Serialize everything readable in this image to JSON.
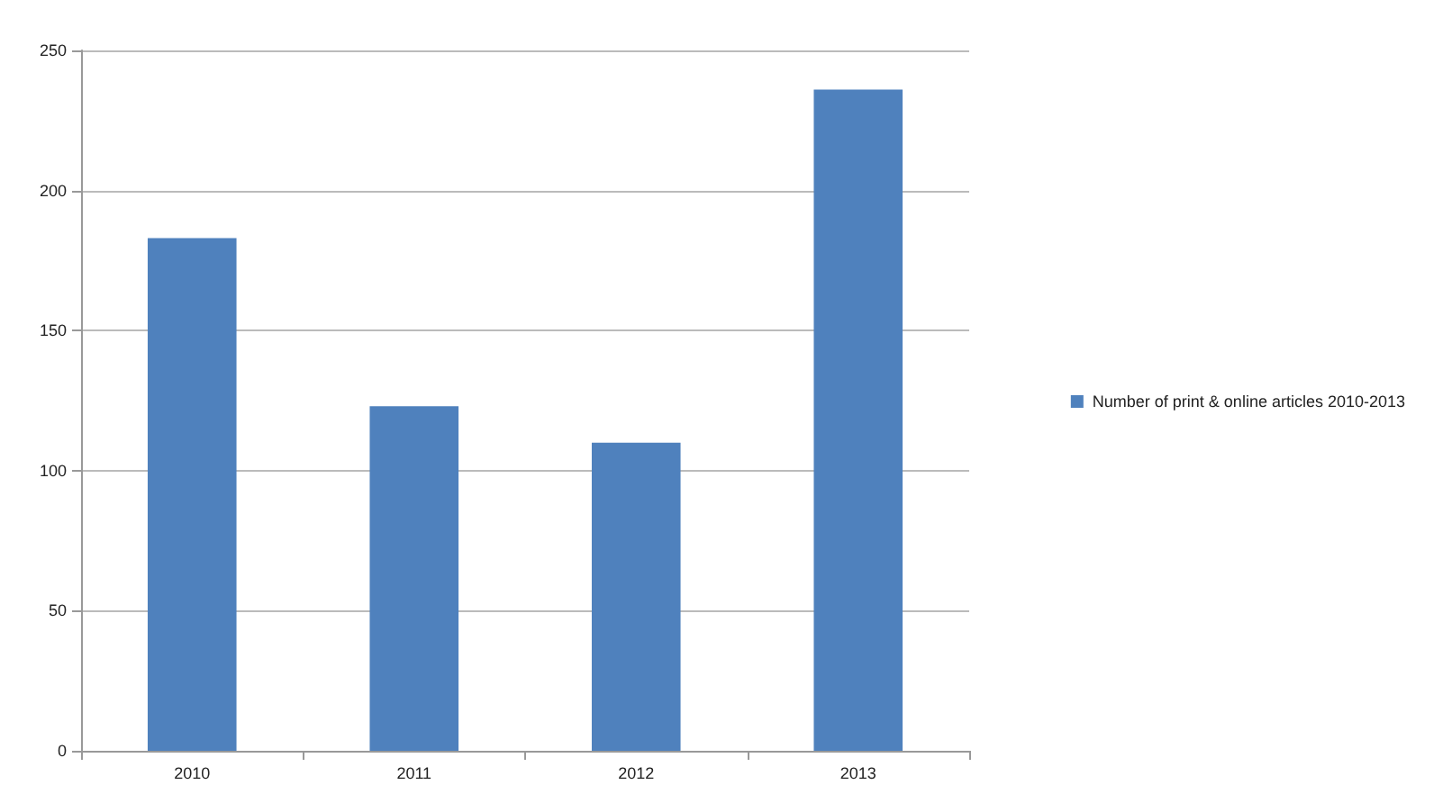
{
  "chart_data": {
    "type": "bar",
    "categories": [
      "2010",
      "2011",
      "2012",
      "2013"
    ],
    "series": [
      {
        "name": "Number of print & online articles 2010-2013",
        "color": "#4f81bd",
        "values": [
          183,
          123,
          110,
          236
        ]
      }
    ],
    "ylim": [
      0,
      250
    ],
    "yticks": [
      0,
      50,
      100,
      150,
      200,
      250
    ],
    "grid": "y",
    "legend": "right"
  }
}
